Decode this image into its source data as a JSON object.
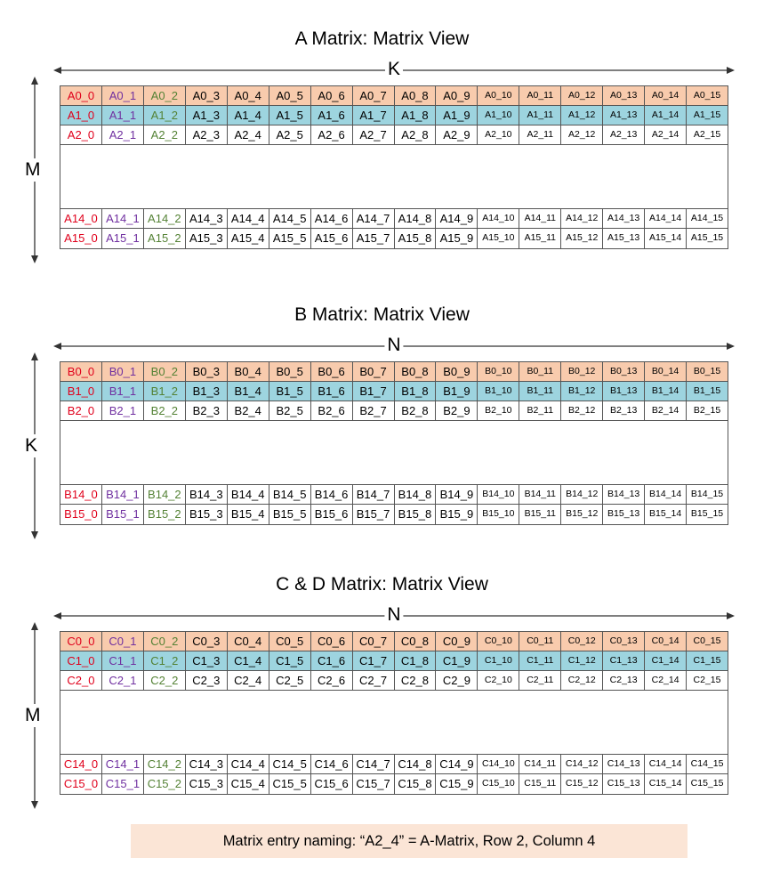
{
  "colors": {
    "row0_bg": "#f8cbad",
    "row1_bg": "#9dd4df",
    "col0_text": "#e0001b",
    "col1_text": "#7030a0",
    "col2_text": "#548235",
    "note_bg": "#fbe5d6"
  },
  "matrices": [
    {
      "id": "A",
      "title": "A Matrix: Matrix View",
      "h_label": "K",
      "v_label": "M",
      "rows": [
        [
          "A0_0",
          "A0_1",
          "A0_2",
          "A0_3",
          "A0_4",
          "A0_5",
          "A0_6",
          "A0_7",
          "A0_8",
          "A0_9",
          "A0_10",
          "A0_11",
          "A0_12",
          "A0_13",
          "A0_14",
          "A0_15"
        ],
        [
          "A1_0",
          "A1_1",
          "A1_2",
          "A1_3",
          "A1_4",
          "A1_5",
          "A1_6",
          "A1_7",
          "A1_8",
          "A1_9",
          "A1_10",
          "A1_11",
          "A1_12",
          "A1_13",
          "A1_14",
          "A1_15"
        ],
        [
          "A2_0",
          "A2_1",
          "A2_2",
          "A2_3",
          "A2_4",
          "A2_5",
          "A2_6",
          "A2_7",
          "A2_8",
          "A2_9",
          "A2_10",
          "A2_11",
          "A2_12",
          "A2_13",
          "A2_14",
          "A2_15"
        ],
        [
          "A14_0",
          "A14_1",
          "A14_2",
          "A14_3",
          "A14_4",
          "A14_5",
          "A14_6",
          "A14_7",
          "A14_8",
          "A14_9",
          "A14_10",
          "A14_11",
          "A14_12",
          "A14_13",
          "A14_14",
          "A14_15"
        ],
        [
          "A15_0",
          "A15_1",
          "A15_2",
          "A15_3",
          "A15_4",
          "A15_5",
          "A15_6",
          "A15_7",
          "A15_8",
          "A15_9",
          "A15_10",
          "A15_11",
          "A15_12",
          "A15_13",
          "A15_14",
          "A15_15"
        ]
      ]
    },
    {
      "id": "B",
      "title": "B Matrix: Matrix View",
      "h_label": "N",
      "v_label": "K",
      "rows": [
        [
          "B0_0",
          "B0_1",
          "B0_2",
          "B0_3",
          "B0_4",
          "B0_5",
          "B0_6",
          "B0_7",
          "B0_8",
          "B0_9",
          "B0_10",
          "B0_11",
          "B0_12",
          "B0_13",
          "B0_14",
          "B0_15"
        ],
        [
          "B1_0",
          "B1_1",
          "B1_2",
          "B1_3",
          "B1_4",
          "B1_5",
          "B1_6",
          "B1_7",
          "B1_8",
          "B1_9",
          "B1_10",
          "B1_11",
          "B1_12",
          "B1_13",
          "B1_14",
          "B1_15"
        ],
        [
          "B2_0",
          "B2_1",
          "B2_2",
          "B2_3",
          "B2_4",
          "B2_5",
          "B2_6",
          "B2_7",
          "B2_8",
          "B2_9",
          "B2_10",
          "B2_11",
          "B2_12",
          "B2_13",
          "B2_14",
          "B2_15"
        ],
        [
          "B14_0",
          "B14_1",
          "B14_2",
          "B14_3",
          "B14_4",
          "B14_5",
          "B14_6",
          "B14_7",
          "B14_8",
          "B14_9",
          "B14_10",
          "B14_11",
          "B14_12",
          "B14_13",
          "B14_14",
          "B14_15"
        ],
        [
          "B15_0",
          "B15_1",
          "B15_2",
          "B15_3",
          "B15_4",
          "B15_5",
          "B15_6",
          "B15_7",
          "B15_8",
          "B15_9",
          "B15_10",
          "B15_11",
          "B15_12",
          "B15_13",
          "B15_14",
          "B15_15"
        ]
      ]
    },
    {
      "id": "C",
      "title": "C & D Matrix: Matrix View",
      "h_label": "N",
      "v_label": "M",
      "rows": [
        [
          "C0_0",
          "C0_1",
          "C0_2",
          "C0_3",
          "C0_4",
          "C0_5",
          "C0_6",
          "C0_7",
          "C0_8",
          "C0_9",
          "C0_10",
          "C0_11",
          "C0_12",
          "C0_13",
          "C0_14",
          "C0_15"
        ],
        [
          "C1_0",
          "C1_1",
          "C1_2",
          "C1_3",
          "C1_4",
          "C1_5",
          "C1_6",
          "C1_7",
          "C1_8",
          "C1_9",
          "C1_10",
          "C1_11",
          "C1_12",
          "C1_13",
          "C1_14",
          "C1_15"
        ],
        [
          "C2_0",
          "C2_1",
          "C2_2",
          "C2_3",
          "C2_4",
          "C2_5",
          "C2_6",
          "C2_7",
          "C2_8",
          "C2_9",
          "C2_10",
          "C2_11",
          "C2_12",
          "C2_13",
          "C2_14",
          "C2_15"
        ],
        [
          "C14_0",
          "C14_1",
          "C14_2",
          "C14_3",
          "C14_4",
          "C14_5",
          "C14_6",
          "C14_7",
          "C14_8",
          "C14_9",
          "C14_10",
          "C14_11",
          "C14_12",
          "C14_13",
          "C14_14",
          "C14_15"
        ],
        [
          "C15_0",
          "C15_1",
          "C15_2",
          "C15_3",
          "C15_4",
          "C15_5",
          "C15_6",
          "C15_7",
          "C15_8",
          "C15_9",
          "C15_10",
          "C15_11",
          "C15_12",
          "C15_13",
          "C15_14",
          "C15_15"
        ]
      ]
    }
  ],
  "note": "Matrix entry naming: “A2_4”  =  A-Matrix, Row 2, Column 4"
}
